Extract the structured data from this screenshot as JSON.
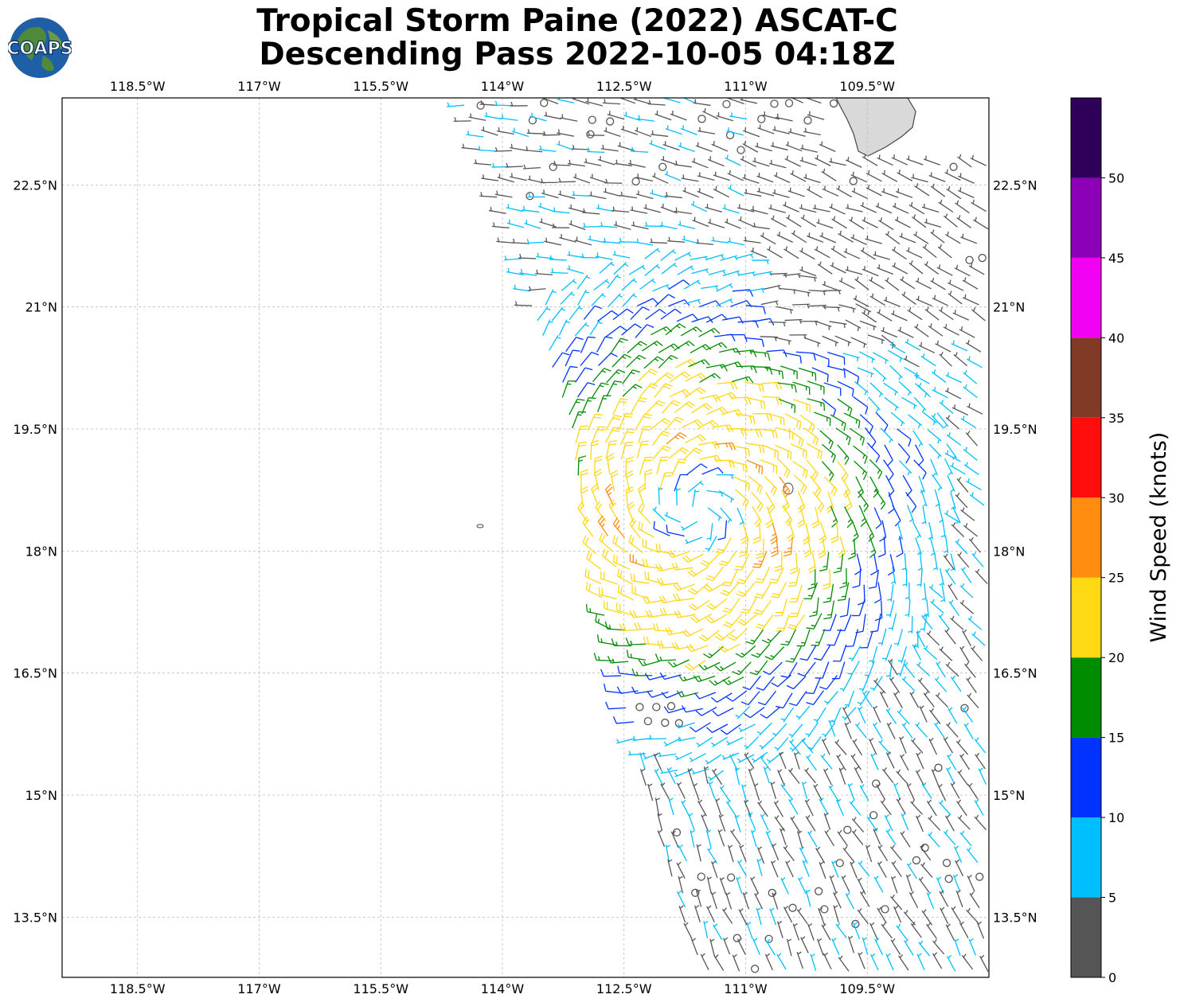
{
  "title": {
    "line1": "Tropical Storm Paine (2022) ASCAT-C",
    "line2": "Descending Pass 2022-10-05 04:18Z"
  },
  "logo": {
    "text": "COAPS"
  },
  "map": {
    "lon_range": [
      -119.43,
      -108.0
    ],
    "lat_range": [
      12.76,
      23.57
    ],
    "lon_ticks": [
      {
        "value": -118.5,
        "label": "118.5°W"
      },
      {
        "value": -117.0,
        "label": "117°W"
      },
      {
        "value": -115.5,
        "label": "115.5°W"
      },
      {
        "value": -114.0,
        "label": "114°W"
      },
      {
        "value": -112.5,
        "label": "112.5°W"
      },
      {
        "value": -111.0,
        "label": "111°W"
      },
      {
        "value": -109.5,
        "label": "109.5°W"
      }
    ],
    "lat_ticks": [
      {
        "value": 22.5,
        "label": "22.5°N"
      },
      {
        "value": 21.0,
        "label": "21°N"
      },
      {
        "value": 19.5,
        "label": "19.5°N"
      },
      {
        "value": 18.0,
        "label": "18°N"
      },
      {
        "value": 16.5,
        "label": "16.5°N"
      },
      {
        "value": 15.0,
        "label": "15°N"
      },
      {
        "value": 13.5,
        "label": "13.5°N"
      }
    ],
    "storm_center": {
      "lon": -111.6,
      "lat": 18.5
    },
    "swath_west_edge": [
      [
        -114.5,
        23.57
      ],
      [
        -113.8,
        21.5
      ],
      [
        -113.2,
        19.5
      ],
      [
        -112.9,
        18.0
      ],
      [
        -112.6,
        16.5
      ],
      [
        -112.2,
        15.0
      ],
      [
        -111.8,
        13.5
      ],
      [
        -111.5,
        12.76
      ]
    ],
    "colors": {
      "land": "#d8d8d8",
      "coast": "#444444",
      "grid": "#bbbbbb"
    }
  },
  "colorbar": {
    "label": "Wind Speed (knots)",
    "bounds": [
      0,
      5,
      10,
      15,
      20,
      25,
      30,
      35,
      40,
      45,
      50,
      55
    ],
    "tick_labels": [
      "0",
      "5",
      "10",
      "15",
      "20",
      "25",
      "30",
      "35",
      "40",
      "45",
      "50"
    ],
    "colors": [
      "#555555",
      "#00bfff",
      "#0033ff",
      "#008c00",
      "#ffd814",
      "#ff8c0f",
      "#ff0d0d",
      "#803a26",
      "#f200f2",
      "#8c00b8",
      "#2e0059"
    ]
  }
}
